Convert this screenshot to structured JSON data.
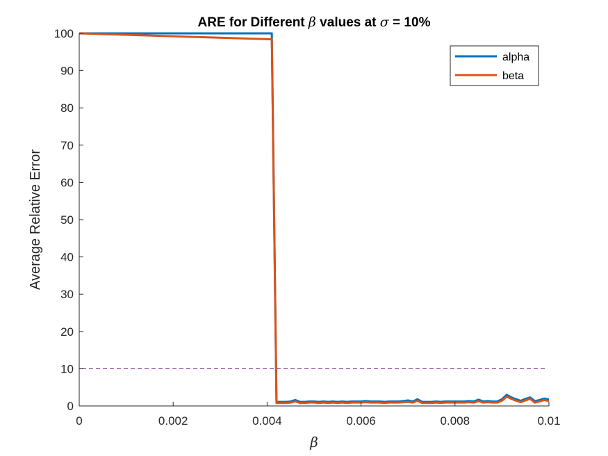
{
  "chart_data": {
    "type": "line",
    "title_prefix": "ARE for Different ",
    "title_symbol": "β",
    "title_middle": " values at ",
    "title_symbol2": "σ",
    "title_suffix": " = 10%",
    "xlabel": "β",
    "ylabel": "Average Relative Error",
    "xlim": [
      0,
      0.01
    ],
    "ylim": [
      0,
      100
    ],
    "xticks": [
      0,
      0.002,
      0.004,
      0.006,
      0.008,
      0.01
    ],
    "xtick_labels": [
      "0",
      "0.002",
      "0.004",
      "0.006",
      "0.008",
      "0.01"
    ],
    "yticks": [
      0,
      10,
      20,
      30,
      40,
      50,
      60,
      70,
      80,
      90,
      100
    ],
    "ytick_labels": [
      "0",
      "10",
      "20",
      "30",
      "40",
      "50",
      "60",
      "70",
      "80",
      "90",
      "100"
    ],
    "grid": false,
    "legend_position": "top-right",
    "threshold": {
      "y": 10,
      "color": "#7E2F8E",
      "style": "dashed"
    },
    "series": [
      {
        "name": "alpha",
        "color": "#0072BD",
        "points": [
          [
            0,
            100
          ],
          [
            0.0041,
            100
          ],
          [
            0.0042,
            1.1
          ],
          [
            0.0043,
            1.1
          ],
          [
            0.0044,
            1.1
          ],
          [
            0.0045,
            1.2
          ],
          [
            0.0046,
            1.6
          ],
          [
            0.0047,
            1.1
          ],
          [
            0.0048,
            1.1
          ],
          [
            0.0049,
            1.2
          ],
          [
            0.005,
            1.2
          ],
          [
            0.0051,
            1.1
          ],
          [
            0.0052,
            1.2
          ],
          [
            0.0053,
            1.1
          ],
          [
            0.0054,
            1.2
          ],
          [
            0.0055,
            1.1
          ],
          [
            0.0056,
            1.2
          ],
          [
            0.0057,
            1.1
          ],
          [
            0.0058,
            1.2
          ],
          [
            0.0059,
            1.2
          ],
          [
            0.006,
            1.2
          ],
          [
            0.0061,
            1.3
          ],
          [
            0.0062,
            1.2
          ],
          [
            0.0063,
            1.2
          ],
          [
            0.0064,
            1.2
          ],
          [
            0.0065,
            1.1
          ],
          [
            0.0066,
            1.2
          ],
          [
            0.0067,
            1.2
          ],
          [
            0.0068,
            1.2
          ],
          [
            0.0069,
            1.3
          ],
          [
            0.007,
            1.5
          ],
          [
            0.0071,
            1.2
          ],
          [
            0.0072,
            1.8
          ],
          [
            0.0073,
            1.1
          ],
          [
            0.0074,
            1.1
          ],
          [
            0.0075,
            1.1
          ],
          [
            0.0076,
            1.2
          ],
          [
            0.0077,
            1.1
          ],
          [
            0.0078,
            1.2
          ],
          [
            0.0079,
            1.2
          ],
          [
            0.008,
            1.2
          ],
          [
            0.0081,
            1.2
          ],
          [
            0.0082,
            1.2
          ],
          [
            0.0083,
            1.3
          ],
          [
            0.0084,
            1.2
          ],
          [
            0.0085,
            1.7
          ],
          [
            0.0086,
            1.2
          ],
          [
            0.0087,
            1.3
          ],
          [
            0.0088,
            1.2
          ],
          [
            0.0089,
            1.2
          ],
          [
            0.009,
            1.8
          ],
          [
            0.0091,
            3.0
          ],
          [
            0.0092,
            2.3
          ],
          [
            0.0093,
            1.8
          ],
          [
            0.0094,
            1.4
          ],
          [
            0.0095,
            1.9
          ],
          [
            0.0096,
            2.3
          ],
          [
            0.0097,
            1.3
          ],
          [
            0.0098,
            1.6
          ],
          [
            0.0099,
            2.0
          ],
          [
            0.01,
            1.7
          ]
        ]
      },
      {
        "name": "beta",
        "color": "#D95319",
        "points": [
          [
            0,
            100
          ],
          [
            0.0041,
            98.4
          ],
          [
            0.0042,
            0.8
          ],
          [
            0.0043,
            0.8
          ],
          [
            0.0044,
            0.8
          ],
          [
            0.0045,
            0.9
          ],
          [
            0.0046,
            1.2
          ],
          [
            0.0047,
            0.8
          ],
          [
            0.0048,
            0.8
          ],
          [
            0.0049,
            0.9
          ],
          [
            0.005,
            0.9
          ],
          [
            0.0051,
            0.8
          ],
          [
            0.0052,
            0.9
          ],
          [
            0.0053,
            0.8
          ],
          [
            0.0054,
            0.9
          ],
          [
            0.0055,
            0.8
          ],
          [
            0.0056,
            0.9
          ],
          [
            0.0057,
            0.8
          ],
          [
            0.0058,
            0.9
          ],
          [
            0.0059,
            0.9
          ],
          [
            0.006,
            0.9
          ],
          [
            0.0061,
            1.0
          ],
          [
            0.0062,
            0.9
          ],
          [
            0.0063,
            0.9
          ],
          [
            0.0064,
            0.9
          ],
          [
            0.0065,
            0.8
          ],
          [
            0.0066,
            0.9
          ],
          [
            0.0067,
            0.9
          ],
          [
            0.0068,
            0.9
          ],
          [
            0.0069,
            1.0
          ],
          [
            0.007,
            1.1
          ],
          [
            0.0071,
            0.9
          ],
          [
            0.0072,
            1.4
          ],
          [
            0.0073,
            0.8
          ],
          [
            0.0074,
            0.8
          ],
          [
            0.0075,
            0.8
          ],
          [
            0.0076,
            0.9
          ],
          [
            0.0077,
            0.8
          ],
          [
            0.0078,
            0.9
          ],
          [
            0.0079,
            0.9
          ],
          [
            0.008,
            0.9
          ],
          [
            0.0081,
            0.9
          ],
          [
            0.0082,
            0.9
          ],
          [
            0.0083,
            1.0
          ],
          [
            0.0084,
            0.9
          ],
          [
            0.0085,
            1.3
          ],
          [
            0.0086,
            0.9
          ],
          [
            0.0087,
            1.0
          ],
          [
            0.0088,
            0.9
          ],
          [
            0.0089,
            0.9
          ],
          [
            0.009,
            1.4
          ],
          [
            0.0091,
            2.5
          ],
          [
            0.0092,
            1.9
          ],
          [
            0.0093,
            1.4
          ],
          [
            0.0094,
            1.0
          ],
          [
            0.0095,
            1.5
          ],
          [
            0.0096,
            1.9
          ],
          [
            0.0097,
            0.9
          ],
          [
            0.0098,
            1.2
          ],
          [
            0.0099,
            1.6
          ],
          [
            0.01,
            1.3
          ]
        ]
      }
    ]
  }
}
